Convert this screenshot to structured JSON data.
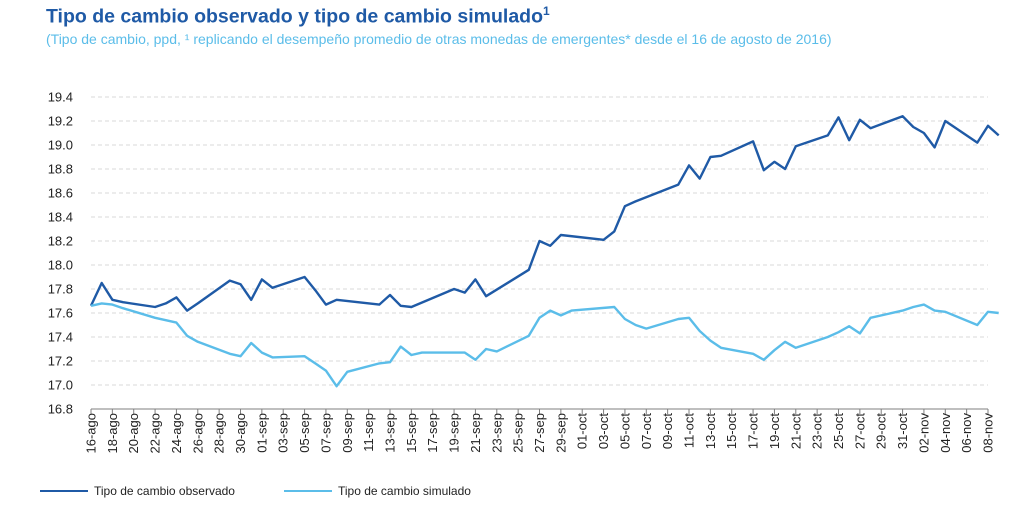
{
  "title": "Tipo de cambio observado y tipo de cambio simulado",
  "title_sup": "1",
  "subtitle": "(Tipo de cambio, ppd, ¹ replicando el desempeño promedio de otras monedas de emergentes* desde el 16 de agosto de 2016)",
  "colors": {
    "observed": "#1f5aa6",
    "simulated": "#5bbde9",
    "grid": "#d9d9d9",
    "axis": "#7f7f7f"
  },
  "chart_data": {
    "type": "line",
    "title": "Tipo de cambio observado y tipo de cambio simulado",
    "xlabel": "",
    "ylabel": "",
    "ylim": [
      16.8,
      19.4
    ],
    "yticks": [
      "19.4",
      "19.2",
      "19.0",
      "18.8",
      "18.6",
      "18.4",
      "18.2",
      "18.0",
      "17.8",
      "17.6",
      "17.4",
      "17.2",
      "17.0",
      "16.8"
    ],
    "xticks": [
      "16-ago",
      "18-ago",
      "20-ago",
      "22-ago",
      "24-ago",
      "26-ago",
      "28-ago",
      "30-ago",
      "01-sep",
      "03-sep",
      "05-sep",
      "07-sep",
      "09-sep",
      "11-sep",
      "13-sep",
      "15-sep",
      "17-sep",
      "19-sep",
      "21-sep",
      "23-sep",
      "25-sep",
      "27-sep",
      "29-sep",
      "01-oct",
      "03-oct",
      "05-oct",
      "07-oct",
      "09-oct",
      "11-oct",
      "13-oct",
      "15-oct",
      "17-oct",
      "19-oct",
      "21-oct",
      "23-oct",
      "25-oct",
      "27-oct",
      "29-oct",
      "31-oct",
      "02-nov",
      "04-nov",
      "06-nov",
      "08-nov"
    ],
    "grid": true,
    "legend_position": "bottom",
    "series": [
      {
        "name": "Tipo de cambio observado",
        "points": [
          [
            "16-ago",
            17.66
          ],
          [
            "17-ago",
            17.85
          ],
          [
            "18-ago",
            17.71
          ],
          [
            "19-ago",
            17.69
          ],
          [
            "22-ago",
            17.65
          ],
          [
            "23-ago",
            17.68
          ],
          [
            "24-ago",
            17.73
          ],
          [
            "25-ago",
            17.62
          ],
          [
            "26-ago",
            17.68
          ],
          [
            "29-ago",
            17.87
          ],
          [
            "30-ago",
            17.84
          ],
          [
            "31-ago",
            17.71
          ],
          [
            "01-sep",
            17.88
          ],
          [
            "02-sep",
            17.81
          ],
          [
            "05-sep",
            17.9
          ],
          [
            "06-sep",
            17.79
          ],
          [
            "07-sep",
            17.67
          ],
          [
            "08-sep",
            17.71
          ],
          [
            "12-sep",
            17.67
          ],
          [
            "13-sep",
            17.75
          ],
          [
            "14-sep",
            17.66
          ],
          [
            "15-sep",
            17.65
          ],
          [
            "19-sep",
            17.8
          ],
          [
            "20-sep",
            17.77
          ],
          [
            "21-sep",
            17.88
          ],
          [
            "22-sep",
            17.74
          ],
          [
            "26-sep",
            17.96
          ],
          [
            "27-sep",
            18.2
          ],
          [
            "28-sep",
            18.16
          ],
          [
            "29-sep",
            18.25
          ],
          [
            "03-oct",
            18.21
          ],
          [
            "04-oct",
            18.28
          ],
          [
            "05-oct",
            18.49
          ],
          [
            "06-oct",
            18.53
          ],
          [
            "10-oct",
            18.67
          ],
          [
            "11-oct",
            18.83
          ],
          [
            "12-oct",
            18.72
          ],
          [
            "13-oct",
            18.9
          ],
          [
            "14-oct",
            18.91
          ],
          [
            "17-oct",
            19.03
          ],
          [
            "18-oct",
            18.79
          ],
          [
            "19-oct",
            18.86
          ],
          [
            "20-oct",
            18.8
          ],
          [
            "21-oct",
            18.99
          ],
          [
            "24-oct",
            19.08
          ],
          [
            "25-oct",
            19.23
          ],
          [
            "26-oct",
            19.04
          ],
          [
            "27-oct",
            19.21
          ],
          [
            "28-oct",
            19.14
          ],
          [
            "31-oct",
            19.24
          ],
          [
            "01-nov",
            19.15
          ],
          [
            "02-nov",
            19.1
          ],
          [
            "03-nov",
            18.98
          ],
          [
            "04-nov",
            19.2
          ],
          [
            "07-nov",
            19.02
          ],
          [
            "08-nov",
            19.16
          ],
          [
            "09-nov",
            19.08
          ]
        ]
      },
      {
        "name": "Tipo de cambio simulado",
        "points": [
          [
            "16-ago",
            17.66
          ],
          [
            "17-ago",
            17.68
          ],
          [
            "18-ago",
            17.67
          ],
          [
            "19-ago",
            17.64
          ],
          [
            "22-ago",
            17.56
          ],
          [
            "23-ago",
            17.54
          ],
          [
            "24-ago",
            17.52
          ],
          [
            "25-ago",
            17.41
          ],
          [
            "26-ago",
            17.36
          ],
          [
            "29-ago",
            17.26
          ],
          [
            "30-ago",
            17.24
          ],
          [
            "31-ago",
            17.35
          ],
          [
            "01-sep",
            17.27
          ],
          [
            "02-sep",
            17.23
          ],
          [
            "05-sep",
            17.24
          ],
          [
            "06-sep",
            17.18
          ],
          [
            "07-sep",
            17.12
          ],
          [
            "08-sep",
            16.99
          ],
          [
            "09-sep",
            17.11
          ],
          [
            "12-sep",
            17.18
          ],
          [
            "13-sep",
            17.19
          ],
          [
            "14-sep",
            17.32
          ],
          [
            "15-sep",
            17.25
          ],
          [
            "16-sep",
            17.27
          ],
          [
            "20-sep",
            17.27
          ],
          [
            "21-sep",
            17.21
          ],
          [
            "22-sep",
            17.3
          ],
          [
            "23-sep",
            17.28
          ],
          [
            "26-sep",
            17.41
          ],
          [
            "27-sep",
            17.56
          ],
          [
            "28-sep",
            17.62
          ],
          [
            "29-sep",
            17.58
          ],
          [
            "30-sep",
            17.62
          ],
          [
            "04-oct",
            17.65
          ],
          [
            "05-oct",
            17.55
          ],
          [
            "06-oct",
            17.5
          ],
          [
            "07-oct",
            17.47
          ],
          [
            "10-oct",
            17.55
          ],
          [
            "11-oct",
            17.56
          ],
          [
            "12-oct",
            17.45
          ],
          [
            "13-oct",
            17.37
          ],
          [
            "14-oct",
            17.31
          ],
          [
            "17-oct",
            17.26
          ],
          [
            "18-oct",
            17.21
          ],
          [
            "19-oct",
            17.29
          ],
          [
            "20-oct",
            17.36
          ],
          [
            "21-oct",
            17.31
          ],
          [
            "24-oct",
            17.4
          ],
          [
            "25-oct",
            17.44
          ],
          [
            "26-oct",
            17.49
          ],
          [
            "27-oct",
            17.43
          ],
          [
            "28-oct",
            17.56
          ],
          [
            "31-oct",
            17.62
          ],
          [
            "01-nov",
            17.65
          ],
          [
            "02-nov",
            17.67
          ],
          [
            "03-nov",
            17.62
          ],
          [
            "04-nov",
            17.61
          ],
          [
            "07-nov",
            17.5
          ],
          [
            "08-nov",
            17.61
          ],
          [
            "09-nov",
            17.6
          ]
        ]
      }
    ]
  }
}
